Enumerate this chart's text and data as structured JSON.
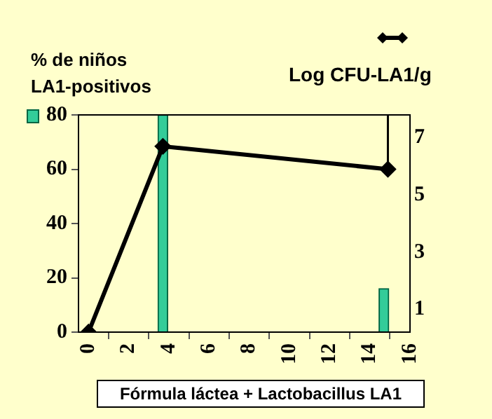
{
  "chart_data": {
    "type": "bar",
    "ylabel": "% de niños LA1-positivos",
    "y2label": "Log CFU-LA1/g",
    "xlabel": "Fórmula láctea + Lactobacillus LA1",
    "xlim": [
      -0.5,
      16
    ],
    "xticks": [
      0,
      2,
      4,
      6,
      8,
      10,
      12,
      14,
      16
    ],
    "ylim": [
      0,
      80
    ],
    "yticks": [
      0,
      20,
      40,
      60,
      80
    ],
    "y2lim": [
      0.2,
      7.8
    ],
    "y2ticks": [
      1,
      3,
      5,
      7
    ],
    "series": [
      {
        "color": "#33cc99",
        "x": [
          3.7,
          14.7
        ],
        "values": [
          80,
          16
        ]
      },
      {
        "type": "line",
        "axis": "y2",
        "color": "#000000",
        "x": [
          0,
          3.7,
          14.9
        ],
        "values": [
          0.2,
          6.7,
          5.9
        ],
        "errors": [
          null,
          null,
          [
            5.9,
            7.8
          ]
        ]
      }
    ],
    "grid": false,
    "marker": "diamond",
    "line_style": "solid",
    "legend": false
  }
}
